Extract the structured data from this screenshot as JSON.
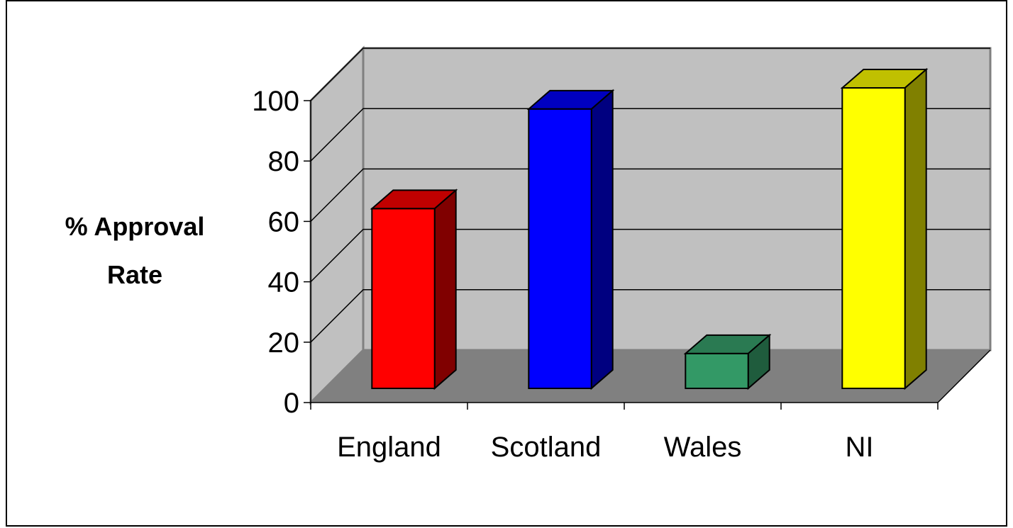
{
  "chart_data": {
    "type": "bar",
    "style": "3d-column",
    "title": "",
    "xlabel": "",
    "ylabel_lines": [
      "% Approval",
      "Rate"
    ],
    "categories": [
      "England",
      "Scotland",
      "Wales",
      "NI"
    ],
    "values": [
      60,
      93,
      12,
      100
    ],
    "yticks": [
      "0",
      "20",
      "40",
      "60",
      "80",
      "100"
    ],
    "ylim": [
      0,
      100
    ],
    "grid": true,
    "legend": "none",
    "colors": {
      "bars": [
        {
          "front": "#ff0000",
          "side": "#800000",
          "top": "#c00000"
        },
        {
          "front": "#0000ff",
          "side": "#000080",
          "top": "#0000c0"
        },
        {
          "front": "#339966",
          "side": "#1f5c3d",
          "top": "#2a7a52"
        },
        {
          "front": "#ffff00",
          "side": "#808000",
          "top": "#c0c000"
        }
      ],
      "wall": "#c0c0c0",
      "floor": "#808080",
      "gridline": "#000000"
    }
  }
}
